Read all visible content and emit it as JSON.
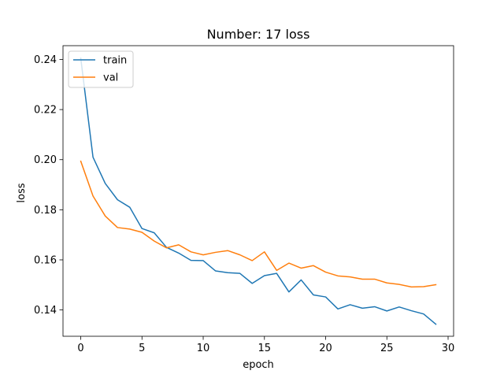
{
  "chart_data": {
    "type": "line",
    "title": "Number: 17 loss",
    "xlabel": "epoch",
    "ylabel": "loss",
    "xlim": [
      -1.45,
      30.45
    ],
    "ylim": [
      0.1295,
      0.2455
    ],
    "xticks": [
      0,
      5,
      10,
      15,
      20,
      25,
      30
    ],
    "yticks": [
      0.14,
      0.16,
      0.18,
      0.2,
      0.22,
      0.24
    ],
    "ytick_labels": [
      "0.14",
      "0.16",
      "0.18",
      "0.20",
      "0.22",
      "0.24"
    ],
    "grid": false,
    "legend_position": "upper left",
    "x": [
      0,
      1,
      2,
      3,
      4,
      5,
      6,
      7,
      8,
      9,
      10,
      11,
      12,
      13,
      14,
      15,
      16,
      17,
      18,
      19,
      20,
      21,
      22,
      23,
      24,
      25,
      26,
      27,
      28,
      29
    ],
    "series": [
      {
        "name": "train",
        "color": "#1f77b4",
        "values": [
          0.2405,
          0.201,
          0.1905,
          0.184,
          0.181,
          0.1725,
          0.1708,
          0.165,
          0.1627,
          0.1598,
          0.1597,
          0.1556,
          0.1549,
          0.1546,
          0.1506,
          0.1537,
          0.1546,
          0.1472,
          0.152,
          0.146,
          0.1452,
          0.1404,
          0.1421,
          0.1407,
          0.1413,
          0.1396,
          0.1412,
          0.1397,
          0.1384,
          0.1343
        ]
      },
      {
        "name": "val",
        "color": "#ff7f0e",
        "values": [
          0.1994,
          0.1855,
          0.1775,
          0.1729,
          0.1723,
          0.171,
          0.1675,
          0.1648,
          0.166,
          0.1632,
          0.162,
          0.163,
          0.1637,
          0.162,
          0.1597,
          0.1632,
          0.1558,
          0.1587,
          0.1567,
          0.1577,
          0.1551,
          0.1536,
          0.1532,
          0.1523,
          0.1523,
          0.1508,
          0.1502,
          0.1492,
          0.1493,
          0.1501
        ]
      }
    ]
  }
}
